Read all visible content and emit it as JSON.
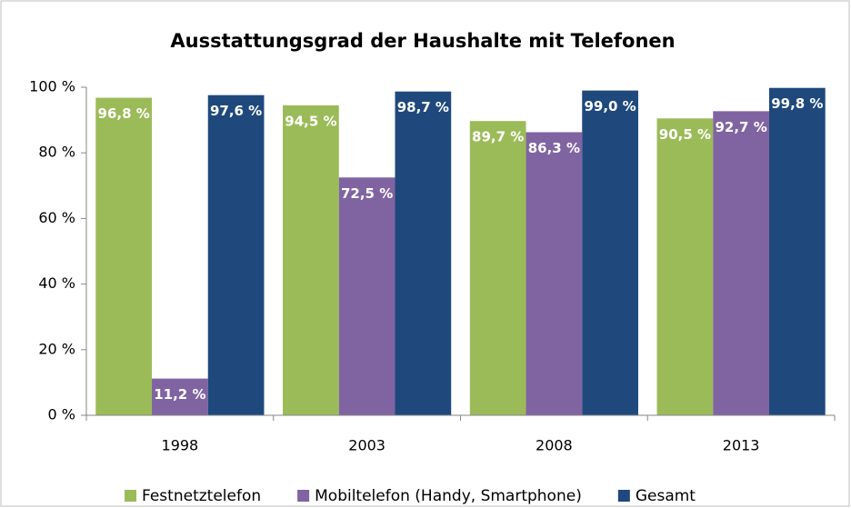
{
  "chart_data": {
    "type": "bar",
    "title": "Ausstattungsgrad der Haushalte mit Telefonen",
    "categories": [
      "1998",
      "2003",
      "2008",
      "2013"
    ],
    "series": [
      {
        "name": "Festnetztelefon",
        "color": "#9bbb59",
        "values": [
          96.8,
          94.5,
          89.7,
          90.5
        ],
        "value_labels": [
          "96,8 %",
          "94,5 %",
          "89,7 %",
          "90,5 %"
        ]
      },
      {
        "name": "Mobiltelefon (Handy, Smartphone)",
        "color": "#8064a2",
        "values": [
          11.2,
          72.5,
          86.3,
          92.7
        ],
        "value_labels": [
          "11,2 %",
          "72,5 %",
          "86,3 %",
          "92,7 %"
        ]
      },
      {
        "name": "Gesamt",
        "color": "#1f497d",
        "values": [
          97.6,
          98.7,
          99.0,
          99.8
        ],
        "value_labels": [
          "97,6 %",
          "98,7 %",
          "99,0 %",
          "99,8 %"
        ]
      }
    ],
    "ylim": [
      0,
      100
    ],
    "yticks": [
      {
        "value": 0,
        "label": "0 %"
      },
      {
        "value": 20,
        "label": "20 %"
      },
      {
        "value": 40,
        "label": "40 %"
      },
      {
        "value": 60,
        "label": "60 %"
      },
      {
        "value": 80,
        "label": "80 %"
      },
      {
        "value": 100,
        "label": "100 %"
      }
    ],
    "grid": false,
    "legend": "bottom"
  }
}
